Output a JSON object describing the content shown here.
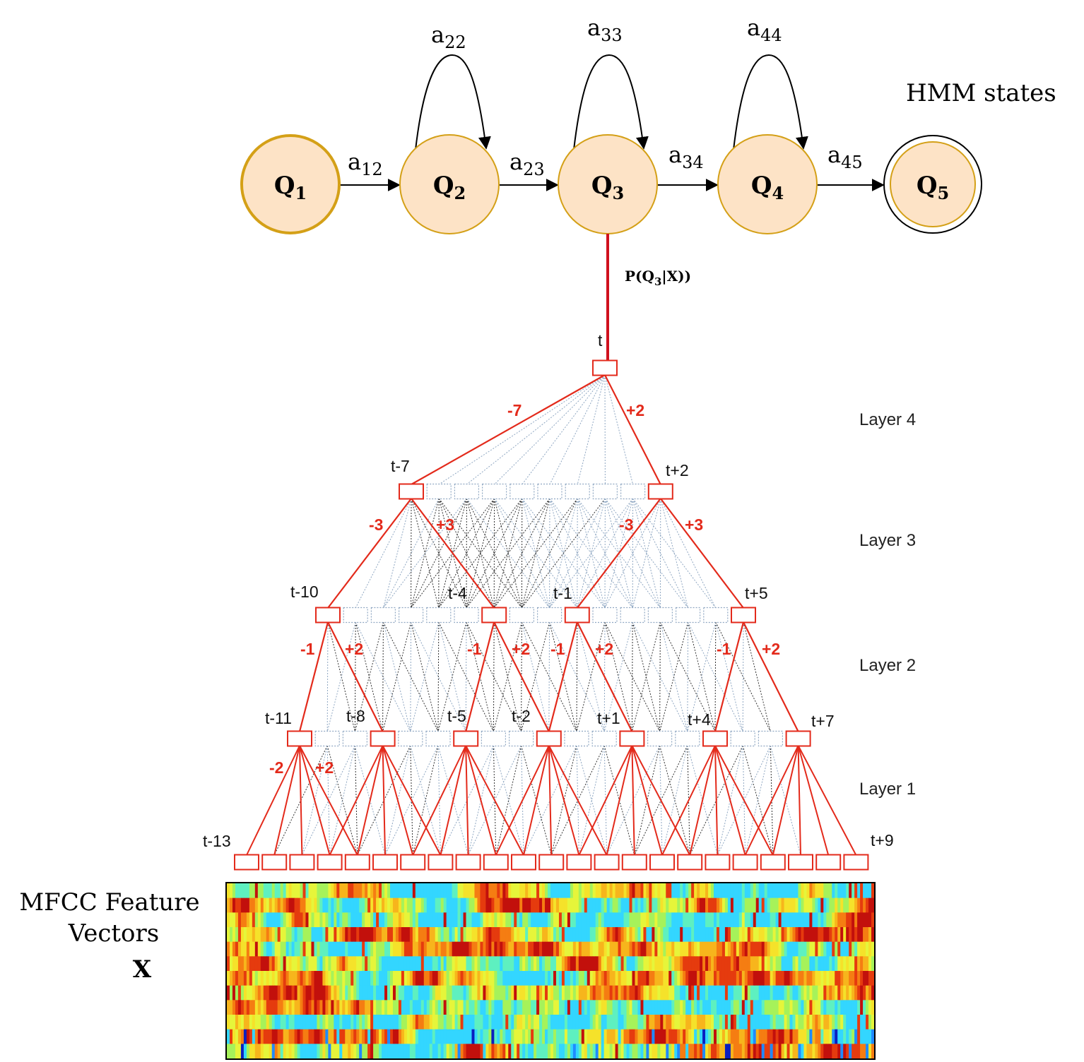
{
  "colors": {
    "state_fill": "#fde3c6",
    "state_stroke": "#d4a017",
    "active_path": "#e32a1b",
    "inactive_node": "#8fa7c2",
    "prob_line": "#d0101e"
  },
  "hmm": {
    "caption": "HMM states",
    "states": [
      {
        "name": "Q",
        "sub": "1"
      },
      {
        "name": "Q",
        "sub": "2"
      },
      {
        "name": "Q",
        "sub": "3"
      },
      {
        "name": "Q",
        "sub": "4"
      },
      {
        "name": "Q",
        "sub": "5"
      }
    ],
    "transitions": [
      {
        "base": "a",
        "sub": "12"
      },
      {
        "base": "a",
        "sub": "23"
      },
      {
        "base": "a",
        "sub": "34"
      },
      {
        "base": "a",
        "sub": "45"
      }
    ],
    "self_loops": [
      {
        "base": "a",
        "sub": "22"
      },
      {
        "base": "a",
        "sub": "33"
      },
      {
        "base": "a",
        "sub": "44"
      }
    ],
    "posterior": {
      "prefix": "P(Q",
      "sub": "3",
      "suffix": "|X))"
    }
  },
  "tdnn": {
    "layers": [
      "Layer 4",
      "Layer 3",
      "Layer 2",
      "Layer 1"
    ],
    "node_labels": {
      "output": [
        "t"
      ],
      "layer4_in": [
        "t-7",
        "t+2"
      ],
      "layer3_in": [
        "t-10",
        "t-4",
        "t-1",
        "t+5"
      ],
      "layer2_in": [
        "t-11",
        "t-8",
        "t-5",
        "t-2",
        "t+1",
        "t+4",
        "t+7"
      ],
      "input": [
        "t-13",
        "t+9"
      ]
    },
    "offsets": {
      "layer4": [
        "-7",
        "+2"
      ],
      "layer3": [
        "-3",
        "+3",
        "-3",
        "+3"
      ],
      "layer2": [
        "-1",
        "+2",
        "-1",
        "+2",
        "-1",
        "+2",
        "-1",
        "+2"
      ],
      "layer1": [
        "-2",
        "+2"
      ]
    }
  },
  "features": {
    "caption_line1": "MFCC Feature",
    "caption_line2": "Vectors",
    "symbol": "X"
  }
}
